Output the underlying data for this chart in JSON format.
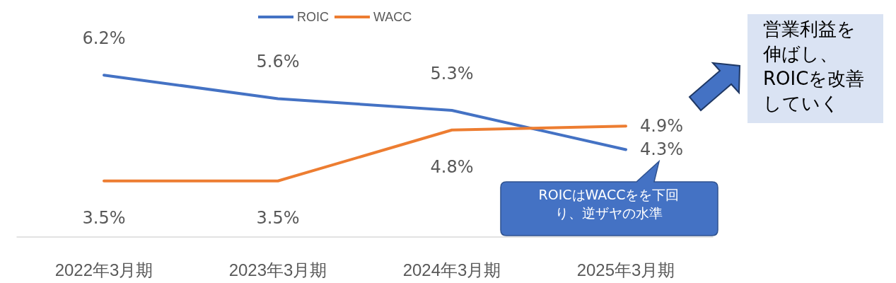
{
  "chart_data": {
    "type": "line",
    "categories": [
      "2022年3月期",
      "2023年3月期",
      "2024年3月期",
      "2025年3月期"
    ],
    "series": [
      {
        "name": "ROIC",
        "color": "#4472c4",
        "values": [
          6.2,
          5.6,
          5.3,
          4.3
        ],
        "value_labels": [
          "6.2%",
          "5.6%",
          "5.3%",
          "4.3%"
        ]
      },
      {
        "name": "WACC",
        "color": "#ed7d31",
        "values": [
          3.5,
          3.5,
          4.8,
          4.9
        ],
        "value_labels": [
          "3.5%",
          "3.5%",
          "4.8%",
          "4.9%"
        ]
      }
    ],
    "legend": "top",
    "grid": false,
    "marker": "none",
    "annotations": [
      "ROICはWACCをを下回り、逆ザヤの水準",
      "営業利益を伸ばし、ROICを改善していく"
    ]
  }
}
